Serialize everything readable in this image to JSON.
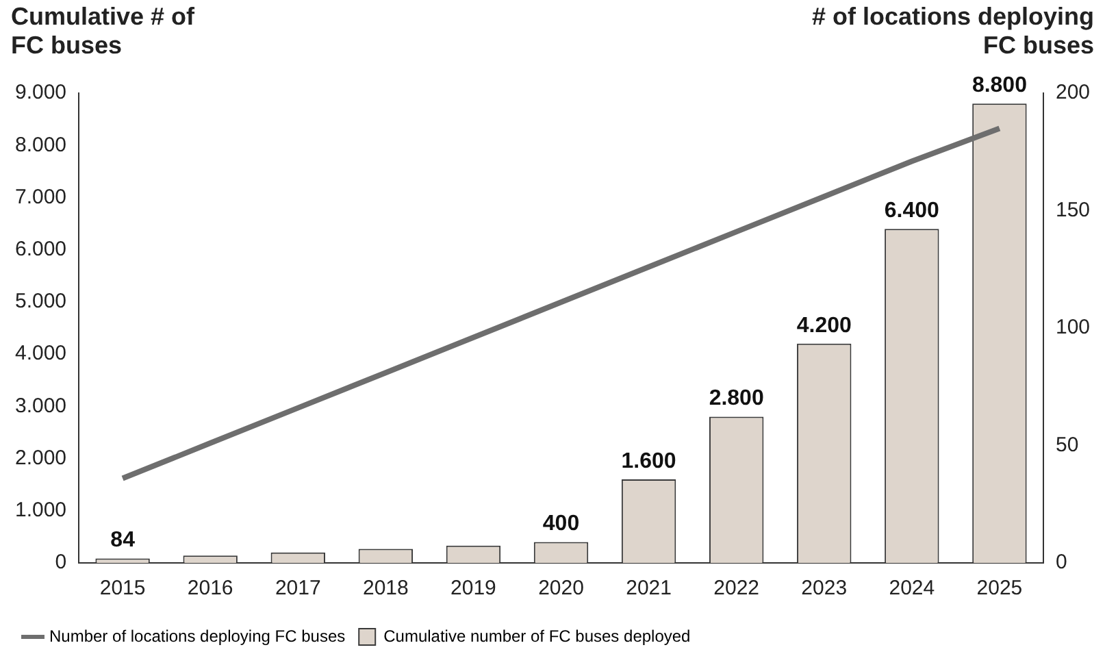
{
  "chart_data": {
    "type": "bar",
    "ylabel": "Cumulative # of FC buses",
    "y2label": "# of locations deploying FC buses",
    "categories": [
      "2015",
      "2016",
      "2017",
      "2018",
      "2019",
      "2020",
      "2021",
      "2022",
      "2023",
      "2024",
      "2025"
    ],
    "series": [
      {
        "name": "Number of locations deploying FC buses",
        "type": "line",
        "axis": "y2",
        "color": "#6e6e6e",
        "values": [
          36,
          51,
          66,
          81,
          96,
          111,
          126,
          141,
          156,
          171,
          185
        ]
      },
      {
        "name": "Cumulative number of FC buses deployed",
        "color": "#ded5cc",
        "values": [
          84,
          140,
          200,
          270,
          330,
          400,
          1600,
          2800,
          4200,
          6400,
          8800
        ],
        "value_labels": [
          "84",
          null,
          null,
          null,
          null,
          "400",
          "1.600",
          "2.800",
          "4.200",
          "6.400",
          "8.800"
        ]
      }
    ],
    "ylim": [
      0,
      9000
    ],
    "yticks": [
      {
        "value": 0,
        "label": "0"
      },
      {
        "value": 1000,
        "label": "1.000"
      },
      {
        "value": 2000,
        "label": "2.000"
      },
      {
        "value": 3000,
        "label": "3.000"
      },
      {
        "value": 4000,
        "label": "4.000"
      },
      {
        "value": 5000,
        "label": "5.000"
      },
      {
        "value": 6000,
        "label": "6.000"
      },
      {
        "value": 7000,
        "label": "7.000"
      },
      {
        "value": 8000,
        "label": "8.000"
      },
      {
        "value": 9000,
        "label": "9.000"
      }
    ],
    "y2lim": [
      0,
      200
    ],
    "y2ticks": [
      0,
      50,
      100,
      150,
      200
    ],
    "grid": false,
    "legend": "bottom",
    "marker": "none"
  }
}
